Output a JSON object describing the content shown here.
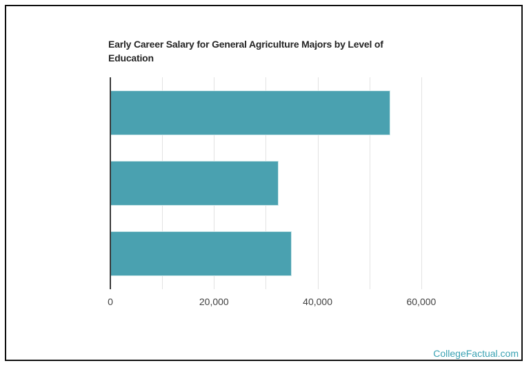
{
  "chart_data": {
    "type": "bar",
    "orientation": "horizontal",
    "title": "Early Career Salary for General Agriculture Majors by Level of Education",
    "categories": [
      "",
      "",
      ""
    ],
    "values": [
      54000,
      32500,
      35000
    ],
    "xlim": [
      0,
      60000
    ],
    "x_ticks": [
      0,
      20000,
      40000,
      60000
    ],
    "x_tick_labels": [
      "0",
      "20,000",
      "40,000",
      "60,000"
    ],
    "gridline_interval": 10000,
    "bar_color": "#4aa1b0",
    "grid_color": "#e2e2e2",
    "axis_color": "#383838",
    "title_color": "#242424",
    "tick_label_color": "#404040",
    "legend": false,
    "grid": true
  },
  "watermark": {
    "text": "CollegeFactual.com",
    "color": "#3aa2b3"
  }
}
